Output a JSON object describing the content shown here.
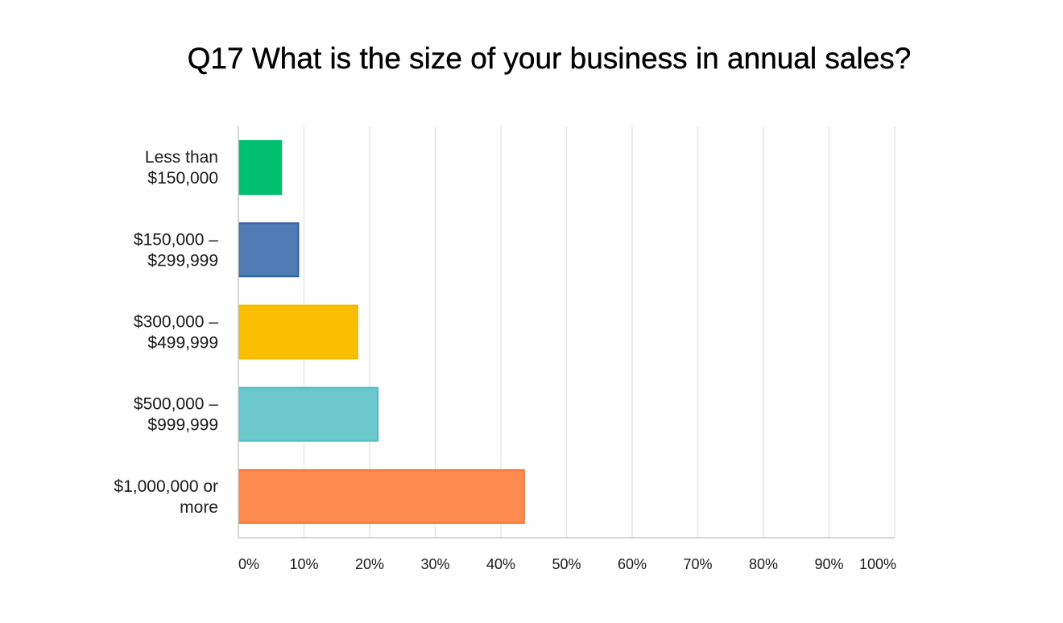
{
  "chart_data": {
    "type": "bar",
    "orientation": "horizontal",
    "title": "Q17 What is the size of your business in annual sales?",
    "xlabel": "",
    "ylabel": "",
    "categories": [
      [
        "Less than",
        "$150,000"
      ],
      [
        "$150,000 –",
        "$299,999"
      ],
      [
        "$300,000 –",
        "$499,999"
      ],
      [
        "$500,000 –",
        "$999,999"
      ],
      [
        "$1,000,000 or",
        "more"
      ]
    ],
    "values": [
      6.6,
      9.2,
      18.2,
      21.3,
      43.6
    ],
    "colors": [
      "#00bf6f",
      "#507cb6",
      "#f9be00",
      "#6bc8cd",
      "#ff8b4f"
    ],
    "border_colors": [
      "#00bf6f",
      "#2f5ea6",
      "#f5b800",
      "#4dbdc3",
      "#f57a3a"
    ],
    "xlim": [
      0,
      100
    ],
    "ticks": [
      0,
      10,
      20,
      30,
      40,
      50,
      60,
      70,
      80,
      90,
      100
    ],
    "tick_labels": [
      "0%",
      "10%",
      "20%",
      "30%",
      "40%",
      "50%",
      "60%",
      "70%",
      "80%",
      "90%",
      "100%"
    ],
    "grid": true,
    "legend": "none"
  }
}
